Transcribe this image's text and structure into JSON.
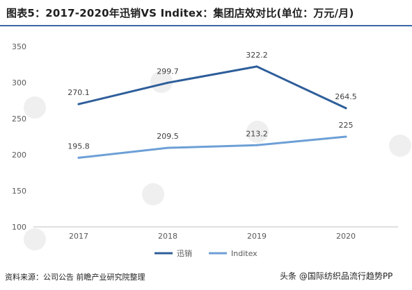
{
  "title": "图表5：2017-2020年迅销VS Inditex：集团店效对比(单位：万元/月)",
  "source": "资料来源：公司公告 前瞻产业研究院整理",
  "attribution": "头条 @国际纺织品流行趋势PP",
  "colors": {
    "series1": "#2e5e9a",
    "series2": "#6d9fd6",
    "axis": "#bfbfbf",
    "tick_text": "#595959"
  },
  "chart_data": {
    "type": "line",
    "x": [
      "2017",
      "2018",
      "2019",
      "2020"
    ],
    "ylim": [
      100,
      350
    ],
    "yticks": [
      100,
      150,
      200,
      250,
      300,
      350
    ],
    "grid": false,
    "legend": "bottom",
    "series": [
      {
        "name": "迅销",
        "values": [
          270.1,
          299.7,
          322.2,
          264.5
        ],
        "labels": [
          "270.1",
          "299.7",
          "322.2",
          "264.5"
        ]
      },
      {
        "name": "Inditex",
        "values": [
          195.8,
          209.5,
          213.2,
          225
        ],
        "labels": [
          "195.8",
          "209.5",
          "213.2",
          "225"
        ]
      }
    ]
  }
}
